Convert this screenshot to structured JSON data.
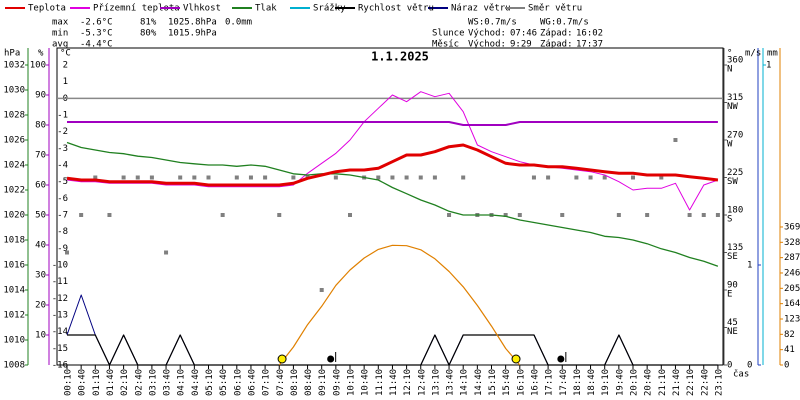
{
  "chart_data": {
    "type": "multi-axis-weather",
    "title": "1.1.2025",
    "x_label": "čas",
    "categories": [
      "00:10",
      "00:40",
      "01:10",
      "01:40",
      "02:10",
      "02:40",
      "03:10",
      "03:40",
      "04:10",
      "04:40",
      "05:10",
      "05:40",
      "06:10",
      "06:40",
      "07:10",
      "07:40",
      "08:10",
      "08:40",
      "09:10",
      "09:40",
      "10:10",
      "10:40",
      "11:10",
      "11:40",
      "12:10",
      "12:40",
      "13:10",
      "13:40",
      "14:10",
      "14:40",
      "15:10",
      "15:40",
      "16:10",
      "16:40",
      "17:10",
      "17:40",
      "18:10",
      "18:40",
      "19:10",
      "19:40",
      "20:10",
      "20:40",
      "21:10",
      "21:40",
      "22:10",
      "22:40",
      "23:10"
    ],
    "axes": [
      {
        "id": "y",
        "label": "°C",
        "color": "#e00000",
        "lim": [
          -16,
          2
        ],
        "ticks": [
          2,
          1,
          0,
          -1,
          -2,
          -3,
          -4,
          -5,
          -6,
          -7,
          -8,
          -9,
          -10,
          -11,
          -12,
          -13,
          -14,
          -15,
          -16
        ]
      },
      {
        "id": "y2",
        "label": "hPa",
        "color": "#208020",
        "lim": [
          1008,
          1032
        ],
        "ticks": [
          1032,
          1030,
          1028,
          1026,
          1024,
          1022,
          1020,
          1018,
          1016,
          1014,
          1012,
          1010,
          1008
        ]
      },
      {
        "id": "y3",
        "label": "%",
        "color": "#a000c0",
        "lim": [
          0,
          100
        ],
        "ticks": [
          100,
          90,
          80,
          70,
          60,
          50,
          40,
          30,
          20,
          10
        ]
      },
      {
        "id": "y4",
        "label": "°",
        "color": "#555555",
        "lim": [
          0,
          360
        ],
        "ticks": [
          {
            "value": 360,
            "compass": "N"
          },
          {
            "value": 315,
            "compass": "NW"
          },
          {
            "value": 270,
            "compass": "W"
          },
          {
            "value": 225,
            "compass": "SW"
          },
          {
            "value": 180,
            "compass": "S"
          },
          {
            "value": 135,
            "compass": "SE"
          },
          {
            "value": 90,
            "compass": "E"
          },
          {
            "value": 45,
            "compass": "NE"
          },
          0
        ]
      },
      {
        "id": "y5",
        "label": "m/s",
        "color": "#2040c0",
        "lim": [
          0,
          3
        ],
        "ticks": [
          0,
          1
        ]
      },
      {
        "id": "y6",
        "label": "mm",
        "color": "#00b0d0",
        "lim": [
          0,
          1
        ],
        "ticks": [
          1
        ]
      },
      {
        "id": "y7",
        "color": "#e08000",
        "lim": [
          0,
          802
        ],
        "ticks": [
          0,
          41,
          82,
          123,
          164,
          205,
          246,
          287,
          328,
          369
        ]
      }
    ],
    "series": [
      {
        "name": "Teplota",
        "color": "#e00000",
        "axis": "y",
        "style": "line",
        "width": 3,
        "values": [
          -4.8,
          -4.9,
          -4.9,
          -5.0,
          -5.0,
          -5.0,
          -5.0,
          -5.1,
          -5.1,
          -5.1,
          -5.2,
          -5.2,
          -5.2,
          -5.2,
          -5.2,
          -5.2,
          -5.1,
          -4.8,
          -4.6,
          -4.4,
          -4.3,
          -4.3,
          -4.2,
          -3.8,
          -3.4,
          -3.4,
          -3.2,
          -2.9,
          -2.8,
          -3.1,
          -3.5,
          -3.9,
          -4.0,
          -4.0,
          -4.1,
          -4.1,
          -4.2,
          -4.3,
          -4.4,
          -4.5,
          -4.5,
          -4.6,
          -4.6,
          -4.6,
          -4.7,
          -4.8,
          -4.9
        ]
      },
      {
        "name": "Přízemní teplota",
        "color": "#e000e0",
        "axis": "y",
        "style": "line",
        "width": 1,
        "values": [
          -4.9,
          -5.0,
          -5.0,
          -5.1,
          -5.1,
          -5.1,
          -5.1,
          -5.2,
          -5.2,
          -5.2,
          -5.3,
          -5.3,
          -5.3,
          -5.3,
          -5.3,
          -5.3,
          -5.2,
          -4.5,
          -3.9,
          -3.3,
          -2.5,
          -1.4,
          -0.6,
          0.2,
          -0.2,
          0.4,
          0.1,
          0.3,
          -0.8,
          -2.8,
          -3.2,
          -3.5,
          -3.8,
          -4.0,
          -4.1,
          -4.2,
          -4.3,
          -4.4,
          -4.6,
          -5.0,
          -5.5,
          -5.4,
          -5.4,
          -5.1,
          -6.7,
          -5.2,
          -4.9
        ]
      },
      {
        "name": "Vlhkost",
        "color": "#a000c0",
        "axis": "y3",
        "style": "line",
        "width": 2,
        "values": [
          81,
          81,
          81,
          81,
          81,
          81,
          81,
          81,
          81,
          81,
          81,
          81,
          81,
          81,
          81,
          81,
          81,
          81,
          81,
          81,
          81,
          81,
          81,
          81,
          81,
          81,
          81,
          81,
          80,
          80,
          80,
          80,
          81,
          81,
          81,
          81,
          81,
          81,
          81,
          81,
          81,
          81,
          81,
          81,
          81,
          81,
          81
        ]
      },
      {
        "name": "Tlak",
        "color": "#208020",
        "axis": "y2",
        "style": "line",
        "width": 1.3,
        "values": [
          1025.8,
          1025.4,
          1025.2,
          1025.0,
          1024.9,
          1024.7,
          1024.6,
          1024.4,
          1024.2,
          1024.1,
          1024.0,
          1024.0,
          1023.9,
          1024.0,
          1023.9,
          1023.6,
          1023.3,
          1023.2,
          1023.3,
          1023.3,
          1023.2,
          1023.0,
          1022.8,
          1022.2,
          1021.7,
          1021.2,
          1020.8,
          1020.3,
          1020.0,
          1020.0,
          1020.0,
          1019.9,
          1019.6,
          1019.4,
          1019.2,
          1019.0,
          1018.8,
          1018.6,
          1018.3,
          1018.2,
          1018.0,
          1017.7,
          1017.3,
          1017.0,
          1016.6,
          1016.3,
          1015.9
        ]
      },
      {
        "name": "Srážky",
        "color": "#00b0d0",
        "axis": "y6",
        "style": "bar",
        "width": 1,
        "values": [
          0,
          0,
          0,
          0,
          0,
          0,
          0,
          0,
          0,
          0,
          0,
          0,
          0,
          0,
          0,
          0,
          0,
          0,
          0,
          0,
          0,
          0,
          0,
          0,
          0,
          0,
          0,
          0,
          0,
          0,
          0,
          0,
          0,
          0,
          0,
          0,
          0,
          0,
          0,
          0,
          0,
          0,
          0,
          0,
          0,
          0,
          0
        ]
      },
      {
        "name": "Náraz větru",
        "color": "#000080",
        "axis": "y5",
        "style": "line",
        "width": 1,
        "values": [
          0.3,
          0.7,
          0.3,
          0,
          0.3,
          0,
          0,
          0,
          0.3,
          0,
          0,
          0,
          0,
          0,
          0,
          0,
          0,
          0,
          0,
          0,
          0,
          0,
          0,
          0,
          0,
          0,
          0.3,
          0,
          0.3,
          0.3,
          0.3,
          0.3,
          0.3,
          0.3,
          0,
          0,
          0,
          0,
          0,
          0.3,
          0,
          0,
          0,
          0,
          0,
          0,
          0
        ]
      },
      {
        "name": "Rychlost větru",
        "color": "#000000",
        "axis": "y5",
        "style": "line",
        "width": 1.2,
        "values": [
          0.3,
          0.3,
          0.3,
          0,
          0.3,
          0,
          0,
          0,
          0.3,
          0,
          0,
          0,
          0,
          0,
          0,
          0,
          0,
          0,
          0,
          0,
          0,
          0,
          0,
          0,
          0,
          0,
          0.3,
          0,
          0.3,
          0.3,
          0.3,
          0.3,
          0.3,
          0.3,
          0,
          0,
          0,
          0,
          0,
          0.3,
          0,
          0,
          0,
          0,
          0,
          0,
          0
        ]
      },
      {
        "name": "Směr větru",
        "color": "#808080",
        "axis": "y4",
        "style": "points",
        "width": 1,
        "values": [
          135,
          180,
          225,
          180,
          225,
          225,
          225,
          135,
          225,
          225,
          225,
          180,
          225,
          225,
          225,
          180,
          225,
          225,
          90,
          225,
          180,
          225,
          225,
          225,
          225,
          225,
          225,
          180,
          225,
          180,
          180,
          180,
          180,
          225,
          225,
          180,
          225,
          225,
          225,
          180,
          225,
          180,
          225,
          270,
          180,
          180,
          180
        ]
      }
    ],
    "radiation": {
      "color": "#e08000",
      "axis": "y7",
      "values": [
        null,
        null,
        null,
        null,
        null,
        null,
        null,
        null,
        null,
        null,
        null,
        null,
        null,
        null,
        null,
        0,
        48,
        108,
        157,
        213,
        254,
        286,
        309,
        320,
        319,
        308,
        284,
        250,
        209,
        159,
        104,
        44,
        0,
        null,
        null,
        null,
        null,
        null,
        null,
        null,
        null,
        null,
        null,
        null,
        null,
        null,
        null
      ]
    },
    "stats": [
      {
        "label": "max",
        "temp": "-2.6°C",
        "hum": "81%",
        "pres": "1025.8hPa",
        "rain": "0.0mm"
      },
      {
        "label": "min",
        "temp": "-5.3°C",
        "hum": "80%",
        "pres": "1015.9hPa"
      },
      {
        "label": "avg",
        "temp": "-4.4°C"
      }
    ],
    "wind_stats": [
      "WS:0.7m/s",
      "WG:0.7m/s"
    ],
    "sun": {
      "label": "Slunce",
      "rise_label": "Východ:",
      "rise": "07:46",
      "set_label": "Západ:",
      "set": "16:02"
    },
    "moon": {
      "label": "Měsíc",
      "rise_label": "Východ:",
      "rise": "9:29",
      "set_label": "Západ:",
      "set": "17:37"
    }
  }
}
